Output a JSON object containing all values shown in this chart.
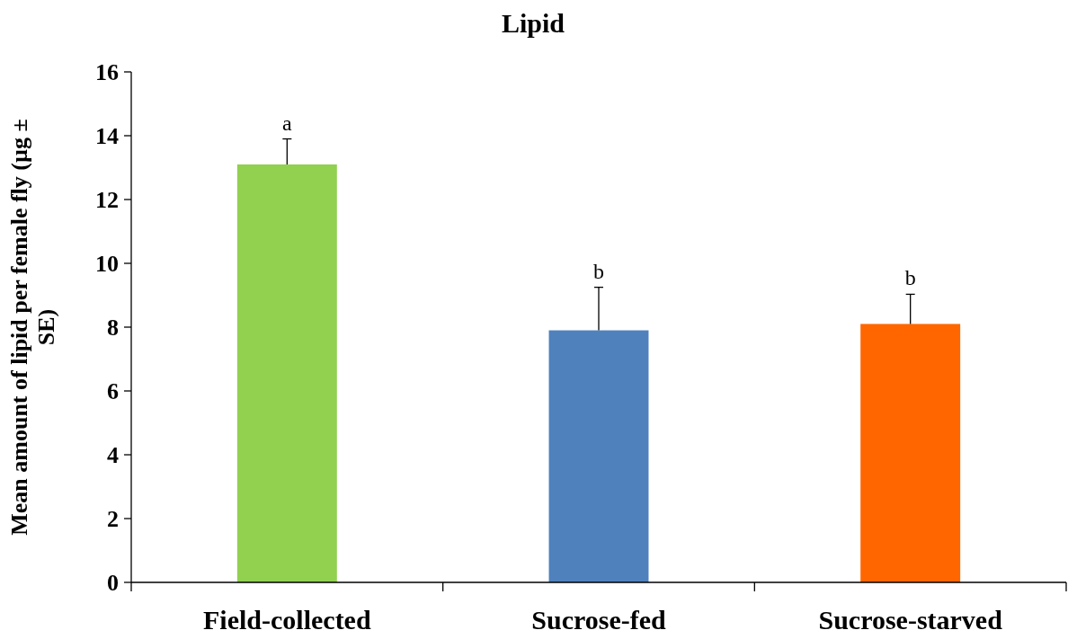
{
  "chart_data": {
    "type": "bar",
    "title": "Lipid",
    "ylabel": "Mean amount of lipid per female fly (µg ± SE)",
    "categories": [
      "Field-collected",
      "Sucrose-fed",
      "Sucrose-starved"
    ],
    "values": [
      13.1,
      7.9,
      8.1
    ],
    "colors": [
      "#92d050",
      "#4f81bd",
      "#ff6600"
    ],
    "errors": [
      0.8,
      1.35,
      0.93
    ],
    "ylim": [
      0,
      16
    ],
    "yticks": [
      0,
      2,
      4,
      6,
      8,
      10,
      12,
      14,
      16
    ],
    "grid": false,
    "annotations": [
      {
        "text": "a",
        "x": "Field-collected",
        "y": 13.9
      },
      {
        "text": "b",
        "x": "Sucrose-fed",
        "y": 9.25
      },
      {
        "text": "b",
        "x": "Sucrose-starved",
        "y": 9.03
      }
    ]
  }
}
